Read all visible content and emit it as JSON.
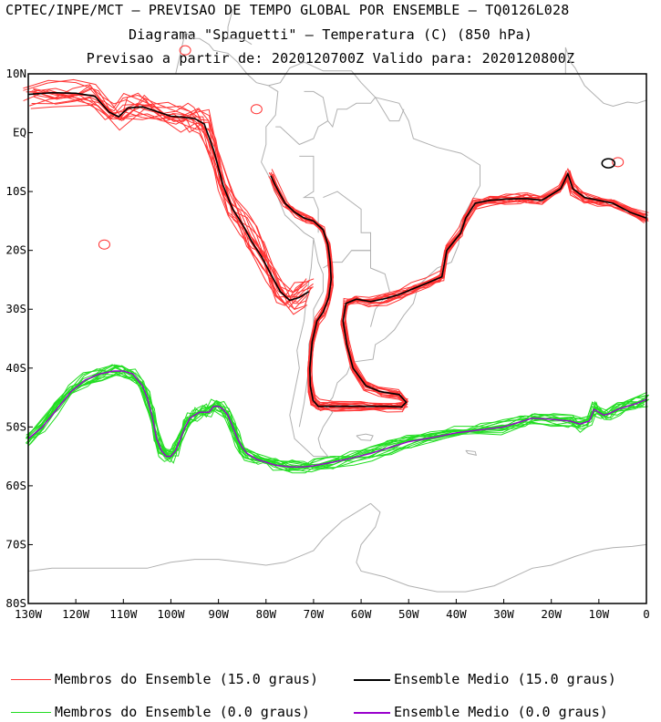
{
  "titles": {
    "line1": "CPTEC/INPE/MCT – PREVISAO DE TEMPO GLOBAL POR ENSEMBLE – TQ0126L028",
    "line2": "Diagrama \"Spaguetti\" – Temperatura (C) (850 hPa)",
    "line3": "Previsao a partir de: 2020120700Z  Valido para: 2020120800Z"
  },
  "chart_data": {
    "type": "line",
    "title": "Diagrama \"Spaguetti\" – Temperatura (C) (850 hPa)",
    "xlabel": "",
    "ylabel": "",
    "xlim": [
      -130,
      0
    ],
    "ylim": [
      -80,
      10
    ],
    "x_ticks": [
      {
        "value": -130,
        "label": "130W"
      },
      {
        "value": -120,
        "label": "120W"
      },
      {
        "value": -110,
        "label": "110W"
      },
      {
        "value": -100,
        "label": "100W"
      },
      {
        "value": -90,
        "label": "90W"
      },
      {
        "value": -80,
        "label": "80W"
      },
      {
        "value": -70,
        "label": "70W"
      },
      {
        "value": -60,
        "label": "60W"
      },
      {
        "value": -50,
        "label": "50W"
      },
      {
        "value": -40,
        "label": "40W"
      },
      {
        "value": -30,
        "label": "30W"
      },
      {
        "value": -20,
        "label": "20W"
      },
      {
        "value": -10,
        "label": "10W"
      },
      {
        "value": 0,
        "label": "0"
      }
    ],
    "y_ticks": [
      {
        "value": 10,
        "label": "10N"
      },
      {
        "value": 0,
        "label": "EQ"
      },
      {
        "value": -10,
        "label": "10S"
      },
      {
        "value": -20,
        "label": "20S"
      },
      {
        "value": -30,
        "label": "30S"
      },
      {
        "value": -40,
        "label": "40S"
      },
      {
        "value": -50,
        "label": "50S"
      },
      {
        "value": -60,
        "label": "60S"
      },
      {
        "value": -70,
        "label": "70S"
      },
      {
        "value": -80,
        "label": "80S"
      }
    ],
    "series": [
      {
        "name": "Ensemble Medio (15.0 graus)",
        "color": "#000000",
        "lon": [
          -130,
          -125,
          -120,
          -116,
          -113,
          -111,
          -109,
          -106,
          -103,
          -100,
          -97,
          -95,
          -93,
          -91,
          -89,
          -87,
          -85,
          -83,
          -81,
          -79,
          -77,
          -75,
          -73,
          -71
        ],
        "lat": [
          6.5,
          6.8,
          6.7,
          6.2,
          3.5,
          2.7,
          4.2,
          4.4,
          3.6,
          2.8,
          2.6,
          2.4,
          1.5,
          -3,
          -9,
          -13,
          -15.5,
          -18.5,
          -21,
          -24,
          -27,
          -28.5,
          -28,
          -27
        ],
        "lon_b": [
          -79,
          -78,
          -76,
          -74,
          -72,
          -70,
          -68,
          -67,
          -66.5,
          -66.3,
          -66.8,
          -68,
          -69.3,
          -70.3,
          -70.8,
          -70.7,
          -70.1,
          -69,
          -66,
          -60,
          -55,
          -51.5,
          -50.5,
          -52,
          -56,
          -59,
          -61.7,
          -63,
          -63.8,
          -63.2,
          -61,
          -58,
          -55,
          -52,
          -49,
          -46,
          -43,
          -42,
          -39,
          -38,
          -36,
          -33,
          -30,
          -27,
          -25,
          -22,
          -18,
          -16.5,
          -15.5,
          -13,
          -10,
          -7,
          -3.5,
          0
        ],
        "lat_b": [
          -7.3,
          -9,
          -12,
          -13.5,
          -14.5,
          -15,
          -16.5,
          -19,
          -22,
          -25,
          -28,
          -30.5,
          -32,
          -35.5,
          -40,
          -43,
          -45.5,
          -46.5,
          -46.5,
          -46.5,
          -46.5,
          -46.6,
          -45.8,
          -44.5,
          -44,
          -43,
          -40,
          -36,
          -32,
          -29,
          -28.3,
          -28.7,
          -28.2,
          -27.5,
          -26.5,
          -25.5,
          -24.5,
          -20,
          -17,
          -14.5,
          -12,
          -11.5,
          -11.3,
          -11.2,
          -11.2,
          -11.5,
          -9.5,
          -7,
          -9.5,
          -11,
          -11.5,
          -12,
          -13.5,
          -14.5
        ]
      },
      {
        "name": "Ensemble Medio (0.0 graus)",
        "color": "#9900cc",
        "lon": [
          -130,
          -127,
          -124,
          -121,
          -118,
          -115,
          -112,
          -110,
          -108,
          -106,
          -105,
          -104,
          -103,
          -102,
          -101,
          -100,
          -99,
          -98,
          -97,
          -96,
          -95,
          -94,
          -93,
          -92,
          -91,
          -90,
          -89,
          -88,
          -87,
          -86,
          -85,
          -84,
          -82,
          -80,
          -78,
          -75,
          -72,
          -70,
          -66,
          -62,
          -58,
          -54,
          -50,
          -45,
          -40,
          -35,
          -30,
          -26,
          -24,
          -20,
          -16,
          -14,
          -12,
          -11,
          -10,
          -9,
          -8,
          -6,
          -4,
          -2,
          0
        ],
        "lat": [
          -52,
          -50,
          -47,
          -44,
          -42,
          -41,
          -40.5,
          -40.5,
          -41,
          -43,
          -45,
          -48,
          -52,
          -54,
          -55,
          -55,
          -54,
          -52,
          -50,
          -48.5,
          -48,
          -47.5,
          -47.5,
          -47.5,
          -46.5,
          -46.5,
          -47,
          -48,
          -50,
          -52,
          -53.5,
          -54.5,
          -55.5,
          -56,
          -56.5,
          -56.8,
          -56.8,
          -56.6,
          -56,
          -55.3,
          -54.5,
          -53.5,
          -52.5,
          -51.8,
          -51,
          -50.5,
          -50,
          -49,
          -48.5,
          -48.7,
          -49,
          -49.5,
          -49,
          -47,
          -47.5,
          -48,
          -47.8,
          -47,
          -46.5,
          -46,
          -45.3
        ]
      },
      {
        "name": "Membros do Ensemble (15.0 graus)",
        "color": "#ff3333",
        "member_count": 15
      },
      {
        "name": "Membros do Ensemble (0.0 graus)",
        "color": "#22dd22",
        "member_count": 15
      }
    ]
  },
  "legend": {
    "items": [
      {
        "label": "Membros do Ensemble (15.0 graus)",
        "color": "#ff3333"
      },
      {
        "label": "Ensemble Medio (15.0 graus)",
        "color": "#000000"
      },
      {
        "label": "Membros do Ensemble (0.0 graus)",
        "color": "#22dd22"
      },
      {
        "label": "Ensemble Medio (0.0 graus)",
        "color": "#9900cc"
      }
    ]
  }
}
